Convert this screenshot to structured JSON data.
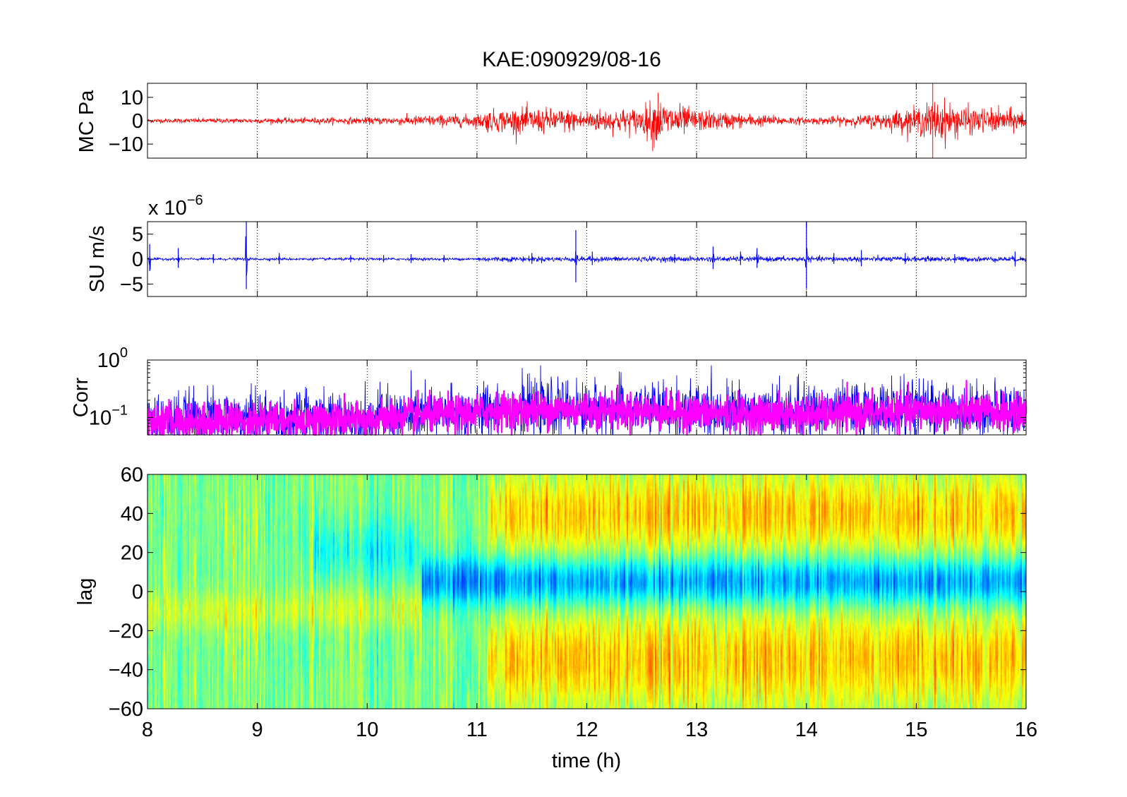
{
  "colors": {
    "panel1_trace": "#ff0000",
    "panel2_trace": "#0000ff",
    "panel3_series1": "#0000ff",
    "panel3_series2": "#ff00ff",
    "colormap": "jet"
  },
  "chart_data": [
    {
      "type": "line",
      "title": "KAE:090929/08-16",
      "ylabel": "MC Pa",
      "xlim": [
        8,
        16
      ],
      "ylim": [
        -16,
        16
      ],
      "xticks": [
        8,
        9,
        10,
        11,
        12,
        13,
        14,
        15,
        16
      ],
      "yticks": [
        -10,
        0,
        10
      ],
      "ytick_labels": [
        "−10",
        "0",
        "10"
      ],
      "grid": "vertical dotted",
      "series": [
        {
          "color": "#ff0000",
          "envelope": {
            "x": [
              8,
              9,
              10,
              10.5,
              11,
              11.1,
              11.5,
              12,
              12.5,
              12.6,
              12.8,
              13,
              13.5,
              14,
              14.5,
              15,
              15.2,
              15.5,
              16
            ],
            "amplitude": [
              1.0,
              1.2,
              1.5,
              2.5,
              3,
              5,
              6,
              5,
              6,
              10,
              8,
              5,
              3,
              1.5,
              2.5,
              6,
              10,
              6,
              5
            ]
          }
        }
      ],
      "spikes": [
        {
          "x": 11.1,
          "y": -5
        },
        {
          "x": 12.65,
          "y": 12
        },
        {
          "x": 12.6,
          "y": -13
        },
        {
          "x": 15.15,
          "y": 16
        },
        {
          "x": 15.15,
          "y": -16
        }
      ]
    },
    {
      "type": "line",
      "ylabel": "SU m/s",
      "exponent_label_base": "x 10",
      "exponent_label_power": "−6",
      "xlim": [
        8,
        16
      ],
      "ylim": [
        -7.5,
        7.5
      ],
      "yticks": [
        -5,
        0,
        5
      ],
      "ytick_labels": [
        "−5",
        "0",
        "5"
      ],
      "grid": "vertical dotted",
      "series": [
        {
          "color": "#0000ff",
          "baseline_amplitude": 0.3,
          "bursts": [
            {
              "x": 8.02,
              "amp": 3
            },
            {
              "x": 8.28,
              "amp": 2.2
            },
            {
              "x": 8.6,
              "amp": 1
            },
            {
              "x": 8.9,
              "amp": 7.5
            },
            {
              "x": 9.2,
              "amp": 1.2
            },
            {
              "x": 9.85,
              "amp": 0.8
            },
            {
              "x": 10.15,
              "amp": 0.8
            },
            {
              "x": 10.4,
              "amp": 1
            },
            {
              "x": 10.7,
              "amp": 0.8
            },
            {
              "x": 11.5,
              "amp": 1.2
            },
            {
              "x": 11.9,
              "amp": 5.8
            },
            {
              "x": 12.05,
              "amp": 1.5
            },
            {
              "x": 12.8,
              "amp": 1
            },
            {
              "x": 13.15,
              "amp": 2.5
            },
            {
              "x": 13.4,
              "amp": 1.5
            },
            {
              "x": 13.55,
              "amp": 2.2
            },
            {
              "x": 14.0,
              "amp": 7.5
            },
            {
              "x": 14.25,
              "amp": 1.2
            },
            {
              "x": 14.5,
              "amp": 1.8
            },
            {
              "x": 14.9,
              "amp": 1.2
            },
            {
              "x": 15.35,
              "amp": 1
            },
            {
              "x": 15.9,
              "amp": 1.5
            }
          ]
        }
      ]
    },
    {
      "type": "line",
      "ylabel": "Corr",
      "yscale": "log",
      "xlim": [
        8,
        16
      ],
      "ylim": [
        0.05,
        1.0
      ],
      "ytick_labels": [
        {
          "base": "10",
          "power": "−1",
          "value": 0.1
        },
        {
          "base": "10",
          "power": "0",
          "value": 1.0
        }
      ],
      "grid": "vertical dotted",
      "series": [
        {
          "color": "#0000ff",
          "level": {
            "x": [
              8,
              9,
              10,
              10.5,
              11,
              11.1,
              12,
              13,
              14,
              15,
              16
            ],
            "y": [
              0.09,
              0.095,
              0.095,
              0.11,
              0.12,
              0.14,
              0.14,
              0.13,
              0.125,
              0.14,
              0.13
            ]
          }
        },
        {
          "color": "#ff00ff",
          "level": {
            "x": [
              8,
              9,
              10,
              10.5,
              11,
              11.1,
              12,
              13,
              14,
              15,
              16
            ],
            "y": [
              0.085,
              0.09,
              0.09,
              0.11,
              0.12,
              0.13,
              0.14,
              0.12,
              0.11,
              0.13,
              0.12
            ]
          }
        }
      ]
    },
    {
      "type": "heatmap",
      "xlabel": "time (h)",
      "ylabel": "lag",
      "xlim": [
        8,
        16
      ],
      "ylim": [
        -60,
        60
      ],
      "xticks": [
        8,
        9,
        10,
        11,
        12,
        13,
        14,
        15,
        16
      ],
      "yticks": [
        -60,
        -40,
        -20,
        0,
        20,
        40,
        60
      ],
      "ytick_labels": [
        "−60",
        "−40",
        "−20",
        "0",
        "20",
        "40",
        "60"
      ],
      "colormap": "jet",
      "features": [
        {
          "name_hint": "negative band",
          "lag_center": 5,
          "lag_halfwidth": 12,
          "x_start": 10.5,
          "x_end": 16,
          "strength": -0.6
        },
        {
          "name_hint": "positive upper",
          "lag_center": 40,
          "lag_halfwidth": 20,
          "x_start": 11.1,
          "x_end": 16,
          "strength": 0.45
        },
        {
          "name_hint": "positive lower",
          "lag_center": -35,
          "lag_halfwidth": 25,
          "x_start": 11.1,
          "x_end": 16,
          "strength": 0.45
        },
        {
          "name_hint": "weak positive",
          "lag_center": -10,
          "lag_halfwidth": 10,
          "x_start": 8,
          "x_end": 10.5,
          "strength": 0.2
        },
        {
          "name_hint": "weak negative",
          "lag_center": 20,
          "lag_halfwidth": 15,
          "x_start": 9.5,
          "x_end": 10.5,
          "strength": -0.25
        }
      ]
    }
  ]
}
